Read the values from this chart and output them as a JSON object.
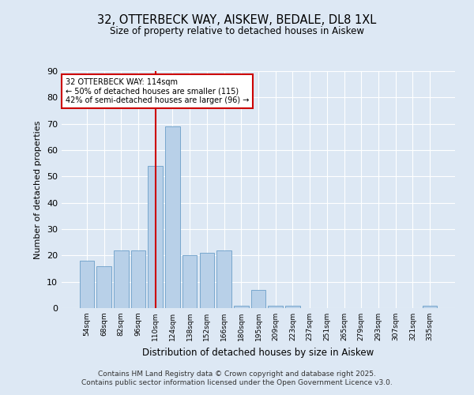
{
  "title1": "32, OTTERBECK WAY, AISKEW, BEDALE, DL8 1XL",
  "title2": "Size of property relative to detached houses in Aiskew",
  "xlabel": "Distribution of detached houses by size in Aiskew",
  "ylabel": "Number of detached properties",
  "categories": [
    "54sqm",
    "68sqm",
    "82sqm",
    "96sqm",
    "110sqm",
    "124sqm",
    "138sqm",
    "152sqm",
    "166sqm",
    "180sqm",
    "195sqm",
    "209sqm",
    "223sqm",
    "237sqm",
    "251sqm",
    "265sqm",
    "279sqm",
    "293sqm",
    "307sqm",
    "321sqm",
    "335sqm"
  ],
  "values": [
    18,
    16,
    22,
    22,
    54,
    69,
    20,
    21,
    22,
    1,
    7,
    1,
    1,
    0,
    0,
    0,
    0,
    0,
    0,
    0,
    1
  ],
  "bar_color": "#b8d0e8",
  "bar_edge_color": "#6b9fc8",
  "vline_index": 4,
  "vline_color": "#cc0000",
  "annotation_title": "32 OTTERBECK WAY: 114sqm",
  "annotation_line1": "← 50% of detached houses are smaller (115)",
  "annotation_line2": "42% of semi-detached houses are larger (96) →",
  "annotation_box_color": "#ffffff",
  "annotation_box_edge_color": "#cc0000",
  "ylim": [
    0,
    90
  ],
  "yticks": [
    0,
    10,
    20,
    30,
    40,
    50,
    60,
    70,
    80,
    90
  ],
  "bg_color": "#dde8f4",
  "footer1": "Contains HM Land Registry data © Crown copyright and database right 2025.",
  "footer2": "Contains public sector information licensed under the Open Government Licence v3.0."
}
